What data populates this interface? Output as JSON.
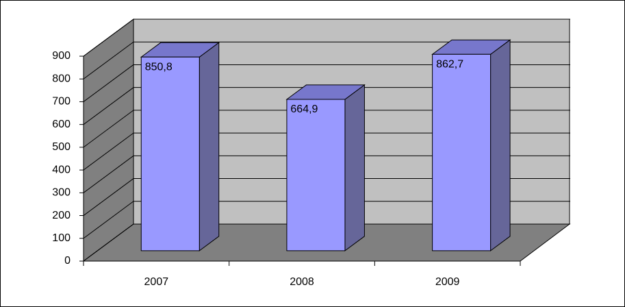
{
  "chart_data": {
    "type": "bar3d",
    "categories": [
      "2007",
      "2008",
      "2009"
    ],
    "values": [
      850.8,
      664.9,
      862.7
    ],
    "value_labels": [
      "850,8",
      "664,9",
      "862,7"
    ],
    "color": "#9999ff",
    "ylim": [
      0,
      900
    ],
    "yticks": [
      0,
      100,
      200,
      300,
      400,
      500,
      600,
      700,
      800,
      900
    ],
    "grid": true
  }
}
